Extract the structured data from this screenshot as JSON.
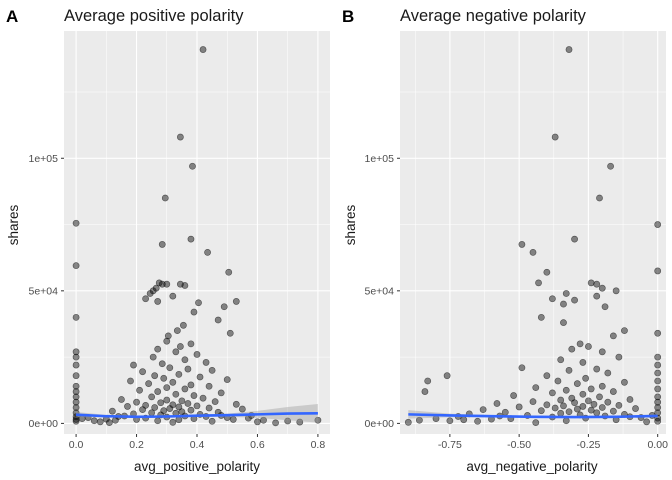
{
  "chart_data": [
    {
      "type": "scatter",
      "panel_tag": "A",
      "title": "Average positive polarity",
      "xlabel": "avg_positive_polarity",
      "ylabel": "shares",
      "xlim": [
        -0.04,
        0.84
      ],
      "ylim": [
        -4000,
        148000
      ],
      "xticks": [
        0.0,
        0.2,
        0.4,
        0.6,
        0.8
      ],
      "xtick_labels": [
        "0.0",
        "0.2",
        "0.4",
        "0.6",
        "0.8"
      ],
      "yticks": [
        0,
        50000,
        100000
      ],
      "ytick_labels": [
        "0e+00",
        "5e+04",
        "1e+05"
      ],
      "grid": true,
      "points": [
        [
          0.0,
          75500
        ],
        [
          0.0,
          59500
        ],
        [
          0.0,
          40000
        ],
        [
          0.0,
          27000
        ],
        [
          0.0,
          25000
        ],
        [
          0.0,
          22000
        ],
        [
          0.0,
          18000
        ],
        [
          0.0,
          14000
        ],
        [
          0.0,
          12000
        ],
        [
          0.0,
          10000
        ],
        [
          0.0,
          8000
        ],
        [
          0.0,
          6000
        ],
        [
          0.0,
          4000
        ],
        [
          0.0,
          2500
        ],
        [
          0.0,
          1500
        ],
        [
          0.0,
          800
        ],
        [
          0.42,
          141000
        ],
        [
          0.345,
          108000
        ],
        [
          0.385,
          97000
        ],
        [
          0.295,
          85000
        ],
        [
          0.38,
          69500
        ],
        [
          0.285,
          67500
        ],
        [
          0.435,
          64500
        ],
        [
          0.505,
          57000
        ],
        [
          0.275,
          53000
        ],
        [
          0.285,
          52500
        ],
        [
          0.3,
          52500
        ],
        [
          0.345,
          52500
        ],
        [
          0.36,
          52000
        ],
        [
          0.265,
          51000
        ],
        [
          0.255,
          50000
        ],
        [
          0.245,
          49000
        ],
        [
          0.32,
          48000
        ],
        [
          0.23,
          47000
        ],
        [
          0.27,
          46000
        ],
        [
          0.405,
          45500
        ],
        [
          0.53,
          46000
        ],
        [
          0.49,
          44000
        ],
        [
          0.39,
          42000
        ],
        [
          0.47,
          39000
        ],
        [
          0.355,
          37000
        ],
        [
          0.335,
          35000
        ],
        [
          0.51,
          34000
        ],
        [
          0.305,
          33000
        ],
        [
          0.3,
          31000
        ],
        [
          0.345,
          29000
        ],
        [
          0.38,
          30000
        ],
        [
          0.27,
          28000
        ],
        [
          0.33,
          27000
        ],
        [
          0.4,
          26000
        ],
        [
          0.255,
          25000
        ],
        [
          0.36,
          24000
        ],
        [
          0.43,
          23000
        ],
        [
          0.285,
          22500
        ],
        [
          0.19,
          22000
        ],
        [
          0.31,
          21000
        ],
        [
          0.37,
          20500
        ],
        [
          0.45,
          20000
        ],
        [
          0.22,
          19500
        ],
        [
          0.34,
          18500
        ],
        [
          0.26,
          18000
        ],
        [
          0.41,
          17500
        ],
        [
          0.29,
          17000
        ],
        [
          0.5,
          16500
        ],
        [
          0.18,
          16000
        ],
        [
          0.32,
          15500
        ],
        [
          0.24,
          15000
        ],
        [
          0.38,
          14500
        ],
        [
          0.44,
          14000
        ],
        [
          0.3,
          13500
        ],
        [
          0.36,
          13000
        ],
        [
          0.21,
          12500
        ],
        [
          0.27,
          12000
        ],
        [
          0.48,
          11500
        ],
        [
          0.33,
          11000
        ],
        [
          0.39,
          10500
        ],
        [
          0.25,
          10000
        ],
        [
          0.42,
          9500
        ],
        [
          0.15,
          9000
        ],
        [
          0.3,
          8800
        ],
        [
          0.35,
          8500
        ],
        [
          0.46,
          8200
        ],
        [
          0.2,
          8000
        ],
        [
          0.28,
          7800
        ],
        [
          0.37,
          7500
        ],
        [
          0.53,
          7200
        ],
        [
          0.32,
          7000
        ],
        [
          0.23,
          6800
        ],
        [
          0.4,
          6600
        ],
        [
          0.17,
          6400
        ],
        [
          0.34,
          6200
        ],
        [
          0.26,
          6000
        ],
        [
          0.44,
          5800
        ],
        [
          0.31,
          5600
        ],
        [
          0.55,
          5400
        ],
        [
          0.22,
          5200
        ],
        [
          0.38,
          5000
        ],
        [
          0.29,
          4800
        ],
        [
          0.12,
          4600
        ],
        [
          0.35,
          4400
        ],
        [
          0.47,
          4200
        ],
        [
          0.25,
          4000
        ],
        [
          0.33,
          3800
        ],
        [
          0.19,
          3600
        ],
        [
          0.41,
          3400
        ],
        [
          0.28,
          3200
        ],
        [
          0.58,
          3000
        ],
        [
          0.36,
          2800
        ],
        [
          0.14,
          2600
        ],
        [
          0.3,
          2400
        ],
        [
          0.5,
          2200
        ],
        [
          0.23,
          2000
        ],
        [
          0.39,
          1800
        ],
        [
          0.1,
          1600
        ],
        [
          0.34,
          1400
        ],
        [
          0.62,
          1200
        ],
        [
          0.27,
          1000
        ],
        [
          0.45,
          800
        ],
        [
          0.08,
          600
        ],
        [
          0.32,
          400
        ],
        [
          0.66,
          200
        ],
        [
          0.2,
          1500
        ],
        [
          0.52,
          1500
        ],
        [
          0.16,
          2800
        ],
        [
          0.43,
          2600
        ],
        [
          0.06,
          1000
        ],
        [
          0.7,
          900
        ],
        [
          0.57,
          2000
        ],
        [
          0.13,
          1200
        ],
        [
          0.48,
          3000
        ],
        [
          0.8,
          1200
        ],
        [
          0.04,
          2200
        ],
        [
          0.6,
          600
        ],
        [
          0.11,
          300
        ],
        [
          0.74,
          500
        ],
        [
          0.02,
          1800
        ]
      ],
      "smooth": {
        "x": [
          0.0,
          0.1,
          0.2,
          0.3,
          0.4,
          0.5,
          0.6,
          0.7,
          0.8
        ],
        "y": [
          3300,
          2700,
          2500,
          2600,
          2900,
          3100,
          3400,
          3700,
          3800
        ],
        "lower": [
          2300,
          2200,
          2200,
          2300,
          2500,
          2500,
          2100,
          1200,
          300
        ],
        "upper": [
          4300,
          3200,
          2800,
          2900,
          3300,
          3700,
          4700,
          6200,
          7300
        ]
      },
      "colors": {
        "smooth": "#3366ff",
        "points": "#000000",
        "panel": "#ebebeb"
      }
    },
    {
      "type": "scatter",
      "panel_tag": "B",
      "title": "Average negative polarity",
      "xlabel": "avg_negative_polarity",
      "ylabel": "shares",
      "xlim": [
        -0.93,
        0.03
      ],
      "ylim": [
        -4000,
        148000
      ],
      "xticks": [
        -0.75,
        -0.5,
        -0.25,
        0.0
      ],
      "xtick_labels": [
        "-0.75",
        "-0.50",
        "-0.25",
        "0.00"
      ],
      "yticks": [
        0,
        50000,
        100000
      ],
      "ytick_labels": [
        "0e+00",
        "5e+04",
        "1e+05"
      ],
      "grid": true,
      "points": [
        [
          -0.32,
          141000
        ],
        [
          -0.37,
          108000
        ],
        [
          -0.17,
          97000
        ],
        [
          -0.21,
          85000
        ],
        [
          -0.3,
          69500
        ],
        [
          -0.49,
          67500
        ],
        [
          -0.45,
          64500
        ],
        [
          -0.0,
          75000
        ],
        [
          -0.0,
          57500
        ],
        [
          -0.4,
          57000
        ],
        [
          -0.43,
          53000
        ],
        [
          -0.24,
          53000
        ],
        [
          -0.22,
          52500
        ],
        [
          -0.2,
          51000
        ],
        [
          -0.15,
          50000
        ],
        [
          -0.33,
          49000
        ],
        [
          -0.22,
          48000
        ],
        [
          -0.38,
          47000
        ],
        [
          -0.3,
          46500
        ],
        [
          -0.34,
          45000
        ],
        [
          -0.19,
          44000
        ],
        [
          -0.42,
          40000
        ],
        [
          -0.34,
          38000
        ],
        [
          -0.12,
          35000
        ],
        [
          -0.0,
          34000
        ],
        [
          -0.16,
          33000
        ],
        [
          -0.28,
          30000
        ],
        [
          -0.25,
          29000
        ],
        [
          -0.31,
          28000
        ],
        [
          -0.2,
          27000
        ],
        [
          -0.14,
          25000
        ],
        [
          -0.35,
          24000
        ],
        [
          -0.27,
          23000
        ],
        [
          -0.49,
          21000
        ],
        [
          -0.22,
          20500
        ],
        [
          -0.32,
          20000
        ],
        [
          -0.18,
          19000
        ],
        [
          -0.4,
          18000
        ],
        [
          -0.76,
          18000
        ],
        [
          -0.83,
          16000
        ],
        [
          -0.84,
          12000
        ],
        [
          -0.26,
          17000
        ],
        [
          -0.36,
          16000
        ],
        [
          -0.12,
          15500
        ],
        [
          -0.29,
          15000
        ],
        [
          -0.2,
          14000
        ],
        [
          -0.44,
          13500
        ],
        [
          -0.24,
          13000
        ],
        [
          -0.33,
          12500
        ],
        [
          -0.16,
          12000
        ],
        [
          -0.38,
          11500
        ],
        [
          -0.27,
          11000
        ],
        [
          -0.52,
          10500
        ],
        [
          -0.21,
          10000
        ],
        [
          -0.31,
          9500
        ],
        [
          -0.1,
          9000
        ],
        [
          -0.35,
          8800
        ],
        [
          -0.25,
          8500
        ],
        [
          -0.45,
          8200
        ],
        [
          -0.18,
          8000
        ],
        [
          -0.3,
          7800
        ],
        [
          -0.58,
          7500
        ],
        [
          -0.23,
          7200
        ],
        [
          -0.4,
          7000
        ],
        [
          -0.14,
          6800
        ],
        [
          -0.34,
          6600
        ],
        [
          -0.27,
          6400
        ],
        [
          -0.5,
          6200
        ],
        [
          -0.2,
          6000
        ],
        [
          -0.37,
          5800
        ],
        [
          -0.08,
          5600
        ],
        [
          -0.29,
          5400
        ],
        [
          -0.63,
          5200
        ],
        [
          -0.24,
          5000
        ],
        [
          -0.42,
          4800
        ],
        [
          -0.16,
          4600
        ],
        [
          -0.32,
          4400
        ],
        [
          -0.55,
          4200
        ],
        [
          -0.22,
          4000
        ],
        [
          -0.35,
          3800
        ],
        [
          -0.68,
          3600
        ],
        [
          -0.12,
          3400
        ],
        [
          -0.28,
          3200
        ],
        [
          -0.47,
          3000
        ],
        [
          -0.19,
          2800
        ],
        [
          -0.72,
          2600
        ],
        [
          -0.38,
          2400
        ],
        [
          -0.06,
          2200
        ],
        [
          -0.26,
          2000
        ],
        [
          -0.8,
          1800
        ],
        [
          -0.6,
          1600
        ],
        [
          -0.15,
          1400
        ],
        [
          -0.86,
          1200
        ],
        [
          -0.33,
          1000
        ],
        [
          -0.65,
          800
        ],
        [
          -0.04,
          600
        ],
        [
          -0.9,
          400
        ],
        [
          -0.44,
          300
        ],
        [
          -0.75,
          1000
        ],
        [
          -0.53,
          1800
        ],
        [
          -0.0,
          25000
        ],
        [
          -0.0,
          22000
        ],
        [
          -0.0,
          19000
        ],
        [
          -0.0,
          16000
        ],
        [
          -0.0,
          13000
        ],
        [
          -0.0,
          10000
        ],
        [
          -0.0,
          8000
        ],
        [
          -0.0,
          6000
        ],
        [
          -0.0,
          4000
        ],
        [
          -0.0,
          2000
        ],
        [
          -0.0,
          800
        ],
        [
          -0.02,
          3000
        ],
        [
          -0.1,
          2500
        ],
        [
          -0.57,
          2800
        ],
        [
          -0.7,
          1400
        ]
      ],
      "smooth": {
        "x": [
          -0.9,
          -0.75,
          -0.6,
          -0.45,
          -0.3,
          -0.15,
          0.0
        ],
        "y": [
          3400,
          3000,
          2700,
          2500,
          2400,
          2500,
          2800
        ],
        "lower": [
          1800,
          2300,
          2300,
          2300,
          2200,
          2200,
          2200
        ],
        "upper": [
          5000,
          3700,
          3100,
          2700,
          2600,
          2800,
          3400
        ]
      },
      "colors": {
        "smooth": "#3366ff",
        "points": "#000000",
        "panel": "#ebebeb"
      }
    }
  ]
}
